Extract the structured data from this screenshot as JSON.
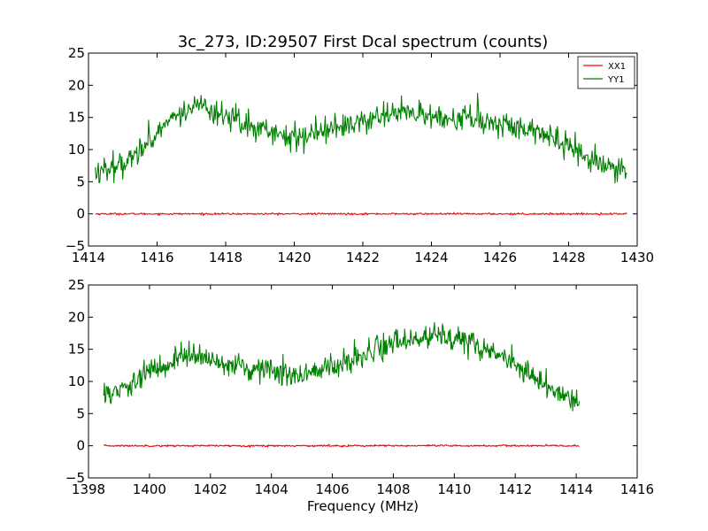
{
  "chart_data": [
    {
      "type": "line",
      "title": "3c_273, ID:29507 First Dcal spectrum (counts)",
      "xlabel": "",
      "ylabel": "",
      "xlim": [
        1414,
        1430
      ],
      "ylim": [
        -5,
        25
      ],
      "x_ticks": [
        "1414",
        "1416",
        "1418",
        "1420",
        "1422",
        "1424",
        "1426",
        "1428",
        "1430"
      ],
      "y_ticks": [
        "−5",
        "0",
        "5",
        "10",
        "15",
        "20",
        "25"
      ],
      "legend_position": "top-right",
      "series": [
        {
          "name": "XX1",
          "color": "#ff0000",
          "x": [
            1414.2,
            1429.7
          ],
          "y": [
            0,
            0
          ]
        },
        {
          "name": "YY1",
          "color": "#008000",
          "x": [
            1414.2,
            1414.5,
            1415.0,
            1415.5,
            1416.0,
            1416.5,
            1417.0,
            1417.5,
            1418.0,
            1418.5,
            1419.0,
            1419.5,
            1420.0,
            1420.5,
            1421.0,
            1421.5,
            1422.0,
            1422.5,
            1423.0,
            1423.5,
            1424.0,
            1424.5,
            1425.0,
            1425.5,
            1426.0,
            1426.5,
            1427.0,
            1427.5,
            1428.0,
            1428.5,
            1429.0,
            1429.7
          ],
          "y": [
            6.5,
            7.0,
            8.0,
            10.0,
            12.5,
            15.0,
            16.5,
            17.0,
            15.0,
            14.0,
            13.0,
            12.5,
            12.0,
            12.5,
            13.5,
            13.5,
            14.5,
            15.0,
            15.5,
            15.5,
            15.5,
            15.0,
            15.0,
            14.5,
            14.0,
            13.5,
            13.0,
            12.0,
            10.5,
            9.0,
            7.5,
            6.5
          ]
        }
      ]
    },
    {
      "type": "line",
      "title": "",
      "xlabel": "Frequency (MHz)",
      "ylabel": "",
      "xlim": [
        1398,
        1416
      ],
      "ylim": [
        -5,
        25
      ],
      "x_ticks": [
        "1398",
        "1400",
        "1402",
        "1404",
        "1406",
        "1408",
        "1410",
        "1412",
        "1414",
        "1416"
      ],
      "y_ticks": [
        "−5",
        "0",
        "5",
        "10",
        "15",
        "20",
        "25"
      ],
      "series": [
        {
          "color": "#ff0000",
          "x": [
            1398.5,
            1414.1
          ],
          "y": [
            0,
            0
          ]
        },
        {
          "color": "#008000",
          "x": [
            1398.5,
            1399.0,
            1399.5,
            1400.0,
            1400.5,
            1401.0,
            1401.5,
            1402.0,
            1402.5,
            1403.0,
            1403.5,
            1404.0,
            1404.5,
            1405.0,
            1405.5,
            1406.0,
            1406.5,
            1407.0,
            1407.5,
            1408.0,
            1408.5,
            1409.0,
            1409.5,
            1410.0,
            1410.5,
            1411.0,
            1411.5,
            1412.0,
            1412.5,
            1413.0,
            1413.5,
            1414.1
          ],
          "y": [
            7.5,
            8.5,
            10.0,
            11.5,
            12.5,
            13.5,
            14.0,
            13.5,
            13.0,
            12.5,
            12.0,
            11.5,
            11.0,
            11.0,
            11.5,
            12.0,
            13.0,
            14.0,
            15.0,
            16.0,
            16.5,
            17.0,
            17.0,
            16.5,
            16.0,
            15.0,
            14.0,
            12.5,
            11.0,
            9.0,
            8.0,
            7.0
          ]
        }
      ]
    }
  ]
}
